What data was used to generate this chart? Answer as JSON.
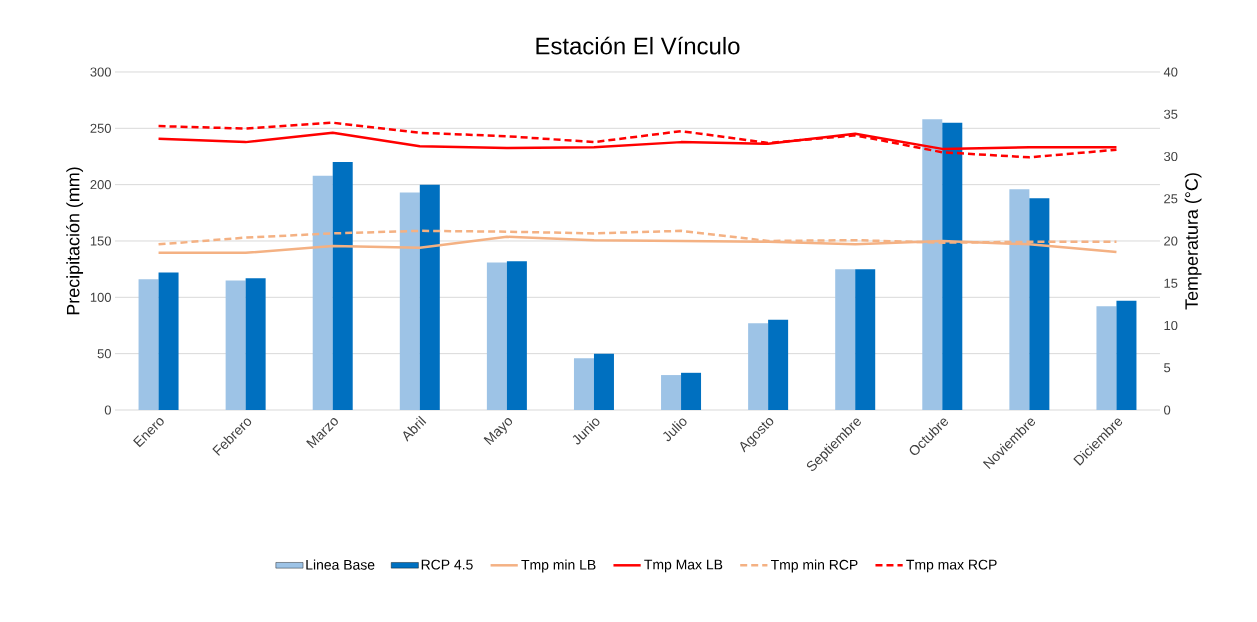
{
  "chart_data": {
    "type": "bar",
    "title": "Estación El Vínculo",
    "ylabel": "Precipitación (mm)",
    "y2label": "Temperatura (°C)",
    "categories": [
      "Enero",
      "Febrero",
      "Marzo",
      "Abril",
      "Mayo",
      "Junio",
      "Julio",
      "Agosto",
      "Septiembre",
      "Octubre",
      "Noviembre",
      "Diciembre"
    ],
    "series": [
      {
        "name": "Linea Base",
        "color": "#9dc3e6",
        "values": [
          116,
          115,
          208,
          193,
          131,
          46,
          31,
          77,
          125,
          258,
          196,
          92
        ]
      },
      {
        "name": "RCP 4.5",
        "color": "#0070c0",
        "values": [
          122,
          117,
          220,
          200,
          132,
          50,
          33,
          80,
          125,
          255,
          188,
          97
        ]
      },
      {
        "name": "Tmp min LB",
        "type": "line",
        "axis": "y2",
        "line_style": "solid",
        "color": "#f4b183",
        "values": [
          18.6,
          18.6,
          19.4,
          19.2,
          20.5,
          20.1,
          20.0,
          19.9,
          19.6,
          20.0,
          19.6,
          18.7
        ]
      },
      {
        "name": "Tmp Max LB",
        "type": "line",
        "axis": "y2",
        "line_style": "solid",
        "color": "#ff0000",
        "values": [
          32.1,
          31.7,
          32.8,
          31.2,
          31.0,
          31.1,
          31.7,
          31.5,
          32.7,
          30.9,
          31.1,
          31.1
        ]
      },
      {
        "name": "Tmp min RCP",
        "type": "line",
        "axis": "y2",
        "line_style": "dashed",
        "color": "#f4b183",
        "values": [
          19.6,
          20.4,
          20.9,
          21.2,
          21.1,
          20.9,
          21.2,
          20.0,
          20.1,
          19.8,
          19.9,
          19.9
        ]
      },
      {
        "name": "Tmp max RCP",
        "type": "line",
        "axis": "y2",
        "line_style": "dashed",
        "color": "#ff0000",
        "values": [
          33.6,
          33.3,
          34.0,
          32.8,
          32.4,
          31.7,
          33.0,
          31.6,
          32.5,
          30.5,
          29.9,
          30.8
        ]
      }
    ],
    "ylim": [
      0,
      300
    ],
    "yticks": [
      0,
      50,
      100,
      150,
      200,
      250,
      300
    ],
    "y2lim": [
      0,
      40
    ],
    "y2ticks": [
      0,
      5,
      10,
      15,
      20,
      25,
      30,
      35,
      40
    ],
    "grid": "y",
    "legend": "bottom",
    "marker": "none"
  }
}
